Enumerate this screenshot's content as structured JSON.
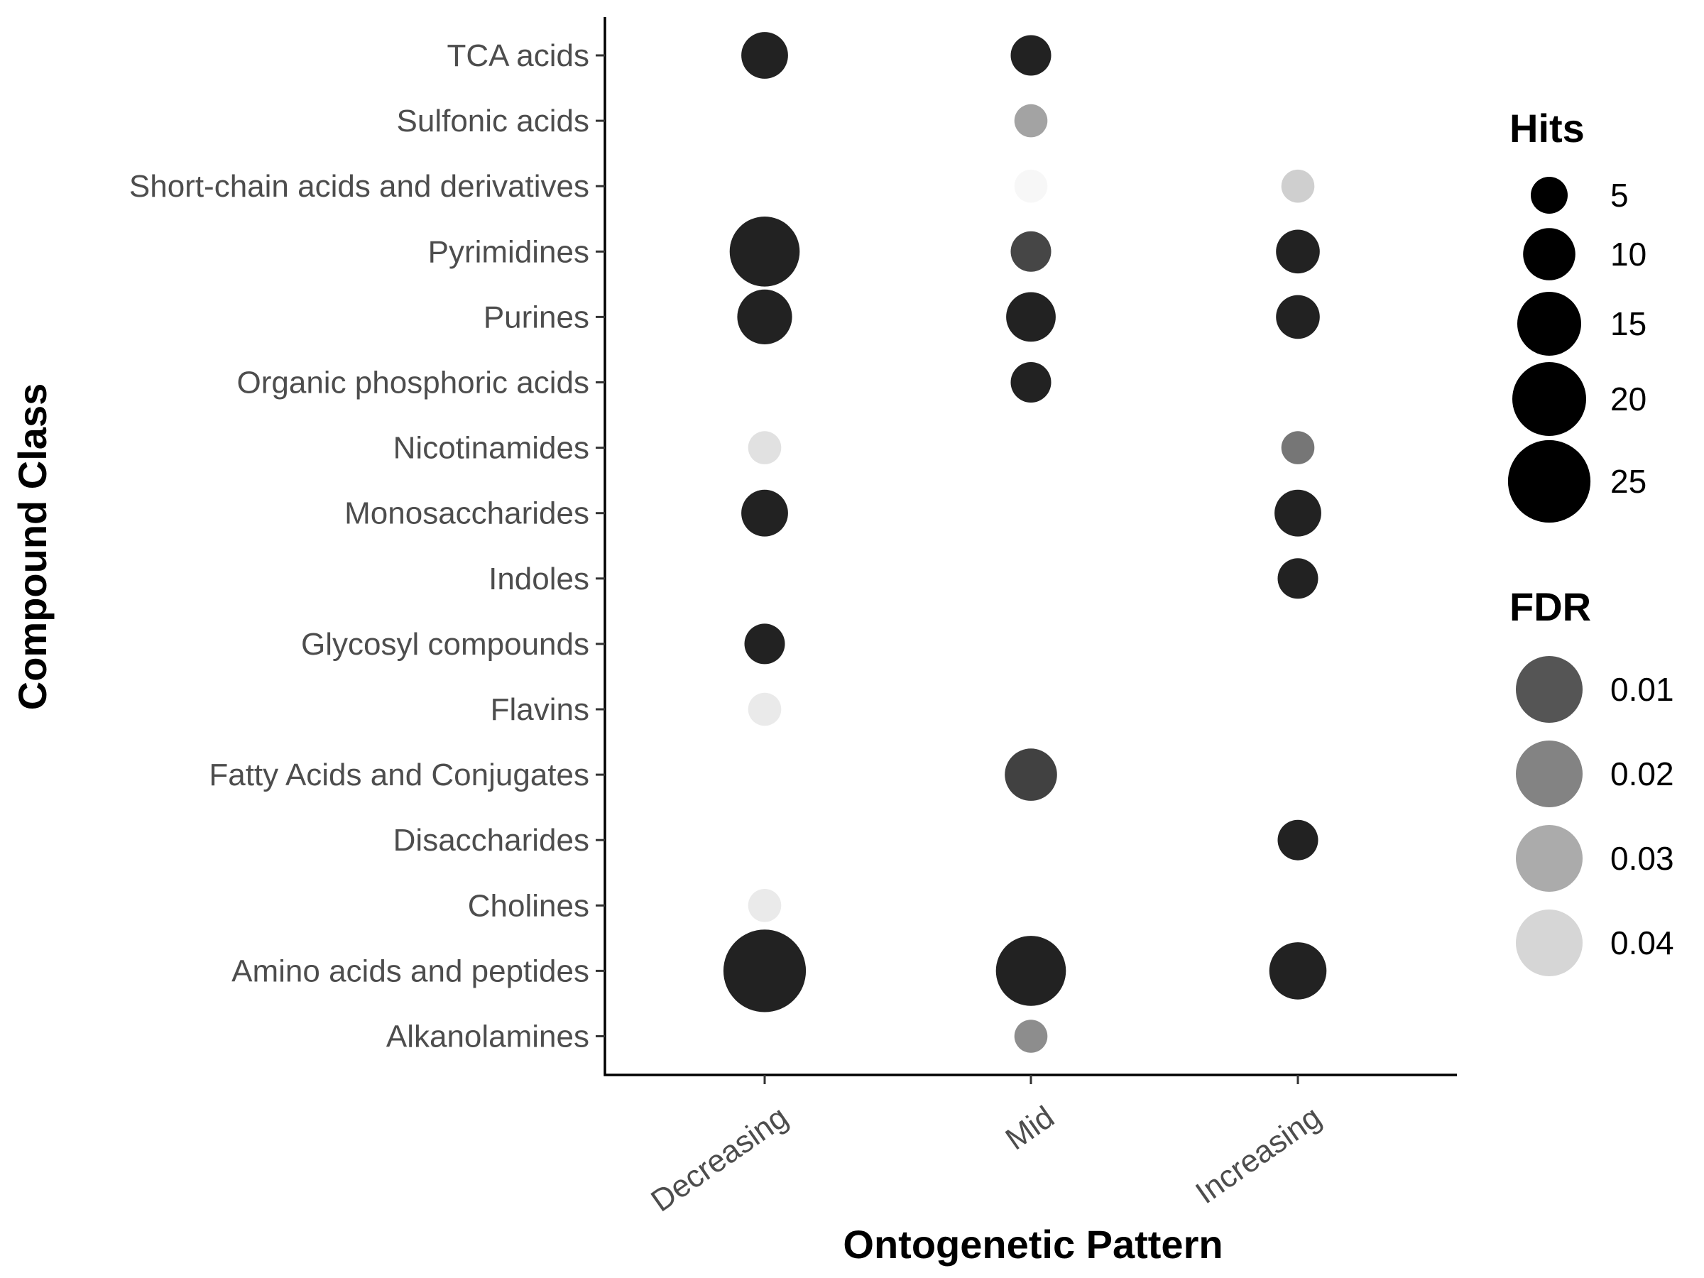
{
  "chart_data": {
    "type": "scatter",
    "xlabel": "Ontogenetic Pattern",
    "ylabel": "Compound Class",
    "x_categories": [
      "Decreasing",
      "Mid",
      "Increasing"
    ],
    "y_categories": [
      "TCA acids",
      "Sulfonic acids",
      "Short-chain acids and derivatives",
      "Pyrimidines",
      "Purines",
      "Organic phosphoric acids",
      "Nicotinamides",
      "Monosaccharides",
      "Indoles",
      "Glycosyl compounds",
      "Flavins",
      "Fatty Acids and Conjugates",
      "Disaccharides",
      "Cholines",
      "Amino acids and peptides",
      "Alkanolamines"
    ],
    "points": [
      {
        "x": "Decreasing",
        "y": "TCA acids",
        "hits": 8,
        "fdr": 0.001
      },
      {
        "x": "Mid",
        "y": "TCA acids",
        "hits": 6,
        "fdr": 0.001
      },
      {
        "x": "Mid",
        "y": "Sulfonic acids",
        "hits": 4,
        "fdr": 0.03
      },
      {
        "x": "Mid",
        "y": "Short-chain acids and derivatives",
        "hits": 4,
        "fdr": 0.049
      },
      {
        "x": "Increasing",
        "y": "Short-chain acids and derivatives",
        "hits": 4,
        "fdr": 0.04
      },
      {
        "x": "Decreasing",
        "y": "Pyrimidines",
        "hits": 18,
        "fdr": 0.001
      },
      {
        "x": "Mid",
        "y": "Pyrimidines",
        "hits": 6,
        "fdr": 0.009
      },
      {
        "x": "Increasing",
        "y": "Pyrimidines",
        "hits": 7,
        "fdr": 0.001
      },
      {
        "x": "Decreasing",
        "y": "Purines",
        "hits": 11,
        "fdr": 0.001
      },
      {
        "x": "Mid",
        "y": "Purines",
        "hits": 9,
        "fdr": 0.001
      },
      {
        "x": "Increasing",
        "y": "Purines",
        "hits": 7,
        "fdr": 0.001
      },
      {
        "x": "Mid",
        "y": "Organic phosphoric acids",
        "hits": 6,
        "fdr": 0.001
      },
      {
        "x": "Decreasing",
        "y": "Nicotinamides",
        "hits": 4,
        "fdr": 0.044
      },
      {
        "x": "Increasing",
        "y": "Nicotinamides",
        "hits": 4,
        "fdr": 0.02
      },
      {
        "x": "Decreasing",
        "y": "Monosaccharides",
        "hits": 8,
        "fdr": 0.001
      },
      {
        "x": "Increasing",
        "y": "Monosaccharides",
        "hits": 8,
        "fdr": 0.001
      },
      {
        "x": "Increasing",
        "y": "Indoles",
        "hits": 6,
        "fdr": 0.001
      },
      {
        "x": "Decreasing",
        "y": "Glycosyl compounds",
        "hits": 6,
        "fdr": 0.001
      },
      {
        "x": "Decreasing",
        "y": "Flavins",
        "hits": 4,
        "fdr": 0.046
      },
      {
        "x": "Mid",
        "y": "Fatty Acids and Conjugates",
        "hits": 10,
        "fdr": 0.008
      },
      {
        "x": "Increasing",
        "y": "Disaccharides",
        "hits": 6,
        "fdr": 0.001
      },
      {
        "x": "Decreasing",
        "y": "Cholines",
        "hits": 4,
        "fdr": 0.046
      },
      {
        "x": "Decreasing",
        "y": "Amino acids and peptides",
        "hits": 25,
        "fdr": 0.001
      },
      {
        "x": "Mid",
        "y": "Amino acids and peptides",
        "hits": 18,
        "fdr": 0.001
      },
      {
        "x": "Increasing",
        "y": "Amino acids and peptides",
        "hits": 12,
        "fdr": 0.001
      },
      {
        "x": "Mid",
        "y": "Alkanolamines",
        "hits": 4,
        "fdr": 0.025
      }
    ],
    "legend_hits": {
      "title": "Hits",
      "values": [
        5,
        10,
        15,
        20,
        25
      ]
    },
    "legend_fdr": {
      "title": "FDR",
      "values": [
        0.01,
        0.02,
        0.03,
        0.04
      ]
    },
    "legend_position": "right",
    "grid": false,
    "colors": {
      "point_dark": "#222222",
      "point_light": "#f7f7f7",
      "axis": "#000000",
      "tick_text": "#4d4d4d"
    }
  }
}
